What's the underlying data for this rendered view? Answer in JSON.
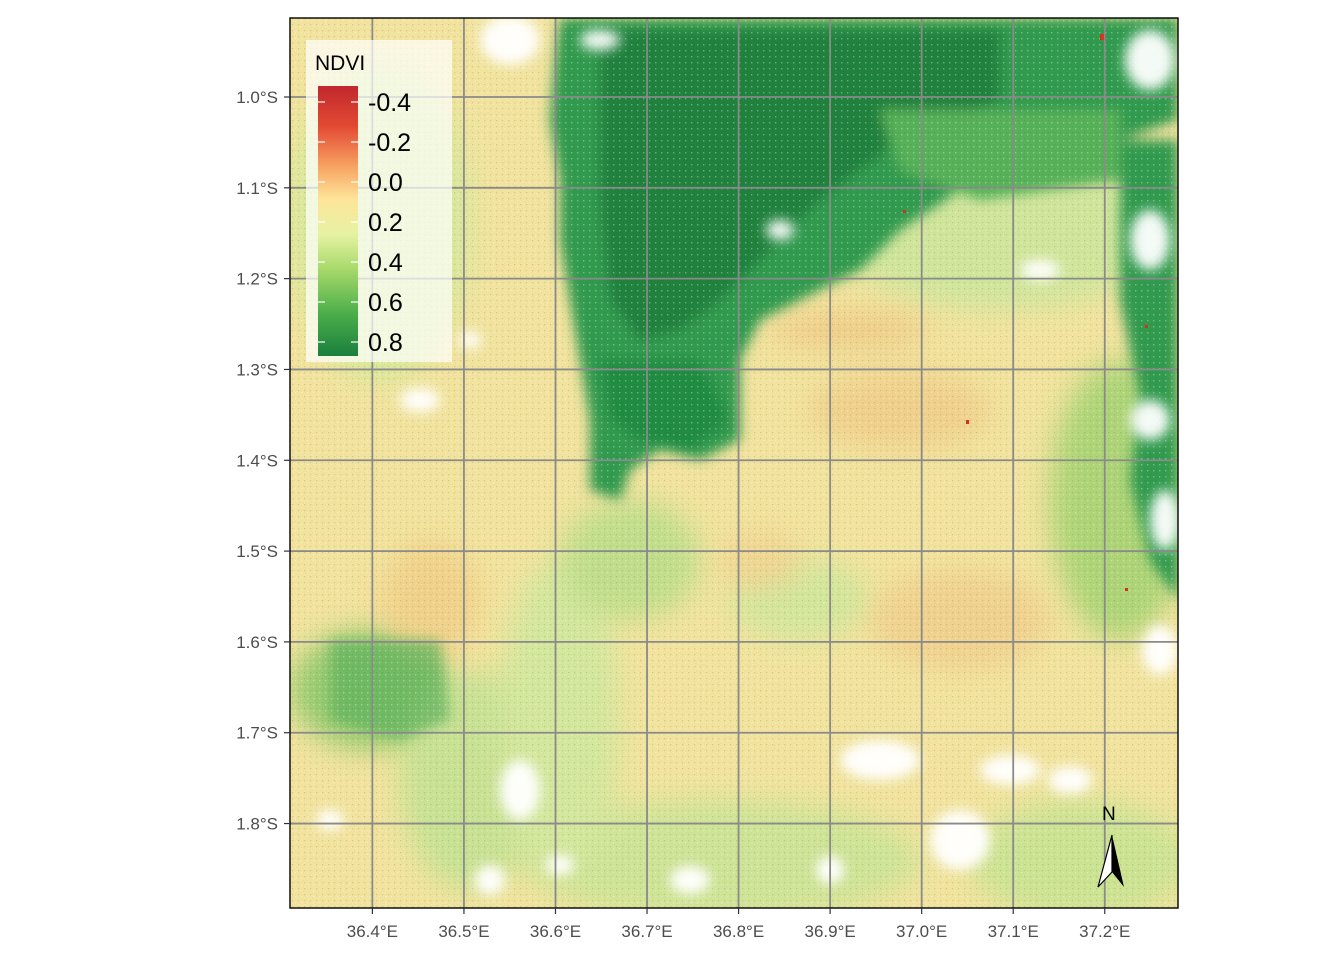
{
  "map": {
    "x_ticks": [
      "36.4°E",
      "36.5°E",
      "36.6°E",
      "36.7°E",
      "36.8°E",
      "36.9°E",
      "37.0°E",
      "37.1°E",
      "37.2°E"
    ],
    "y_ticks": [
      "1.0°S",
      "1.1°S",
      "1.2°S",
      "1.3°S",
      "1.4°S",
      "1.5°S",
      "1.6°S",
      "1.7°S",
      "1.8°S"
    ],
    "x_range": [
      36.31,
      37.28
    ],
    "y_range": [
      -1.893,
      -0.913
    ],
    "grid": true,
    "grid_color": "#888888",
    "colors": {
      "low": "#c1272d",
      "mid": "#fee59a",
      "high": "#1a7f3e",
      "no_data": "#ffffff"
    }
  },
  "legend": {
    "title": "NDVI",
    "placement": "top-left",
    "ticks": [
      "-0.4",
      "-0.2",
      "0.0",
      "0.2",
      "0.4",
      "0.6",
      "0.8"
    ],
    "range": [
      -0.48,
      0.87
    ]
  },
  "north_arrow": {
    "label": "N",
    "placement": "bottom-right"
  }
}
